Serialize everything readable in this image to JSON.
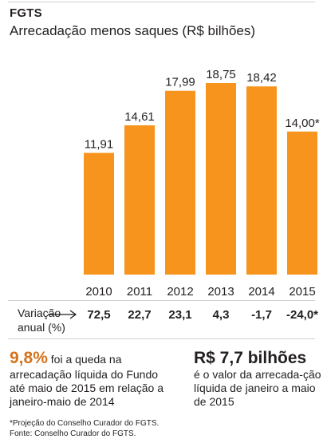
{
  "header": {
    "title": "FGTS",
    "subtitle": "Arrecadação menos saques (R$ bilhões)"
  },
  "colors": {
    "bar": "#f7941d",
    "accent_text": "#d4731e",
    "text": "#231f20"
  },
  "chart_data": {
    "type": "bar",
    "categories": [
      "2010",
      "2011",
      "2012",
      "2013",
      "2014",
      "2015"
    ],
    "values": [
      11.91,
      14.61,
      17.99,
      18.75,
      18.42,
      14.0
    ],
    "data_labels": [
      "11,91",
      "14,61",
      "17,99",
      "18,75",
      "18,42",
      "14,00*"
    ],
    "title": "FGTS",
    "subtitle": "Arrecadação menos saques (R$ bilhões)",
    "xlabel": "",
    "ylabel": "",
    "ylim": [
      0,
      20
    ],
    "grid": false,
    "annual_variation": {
      "label_line1": "Variação",
      "label_line2": "anual (%)",
      "values": [
        "72,5",
        "22,7",
        "23,1",
        "4,3",
        "-1,7",
        "-24,0*"
      ]
    }
  },
  "notes": {
    "left": {
      "highlight": "9,8%",
      "text_first": " foi a queda na",
      "text_rest": "arrecadação líquida do Fundo até maio de 2015 em relação a janeiro-maio de 2014"
    },
    "right": {
      "highlight": "R$ 7,7 bilhões",
      "text": "é o valor da arrecada-ção líquida de janeiro a maio de 2015"
    }
  },
  "footnotes": {
    "line1": "*Projeção do Conselho Curador do FGTS.",
    "line2": "Fonte: Conselho Curador do FGTS."
  }
}
